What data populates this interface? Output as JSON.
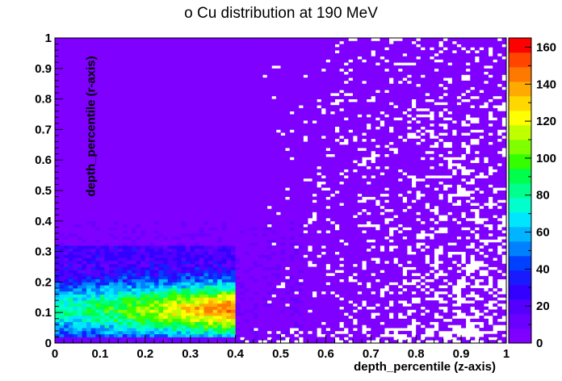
{
  "chart_data": {
    "type": "heatmap",
    "title": "o Cu distribution at 190 MeV",
    "xlabel": "depth_percentile (z-axis)",
    "ylabel": "depth_percentile (r-axis)",
    "xlim": [
      0,
      1
    ],
    "ylim": [
      0,
      1
    ],
    "x_ticks": [
      "0",
      "0.1",
      "0.2",
      "0.3",
      "0.4",
      "0.5",
      "0.6",
      "0.7",
      "0.8",
      "0.9",
      "1"
    ],
    "y_ticks": [
      "0",
      "0.1",
      "0.2",
      "0.3",
      "0.4",
      "0.5",
      "0.6",
      "0.7",
      "0.8",
      "0.9",
      "1"
    ],
    "colorbar": {
      "range": [
        0,
        165
      ],
      "ticks": [
        "0",
        "20",
        "40",
        "60",
        "80",
        "100",
        "120",
        "140",
        "160"
      ]
    },
    "bins": {
      "nx": 100,
      "ny": 100
    },
    "regions": [
      {
        "description": "dense core",
        "x": [
          0.0,
          0.4
        ],
        "y": [
          0.02,
          0.32
        ],
        "peak": 160,
        "peak_at": [
          0.39,
          0.1
        ]
      },
      {
        "description": "diffuse halo",
        "x": [
          0.0,
          1.0
        ],
        "y": [
          0.0,
          1.0
        ],
        "typical": 5
      }
    ],
    "grid": false,
    "legend": "colorbar-right"
  }
}
